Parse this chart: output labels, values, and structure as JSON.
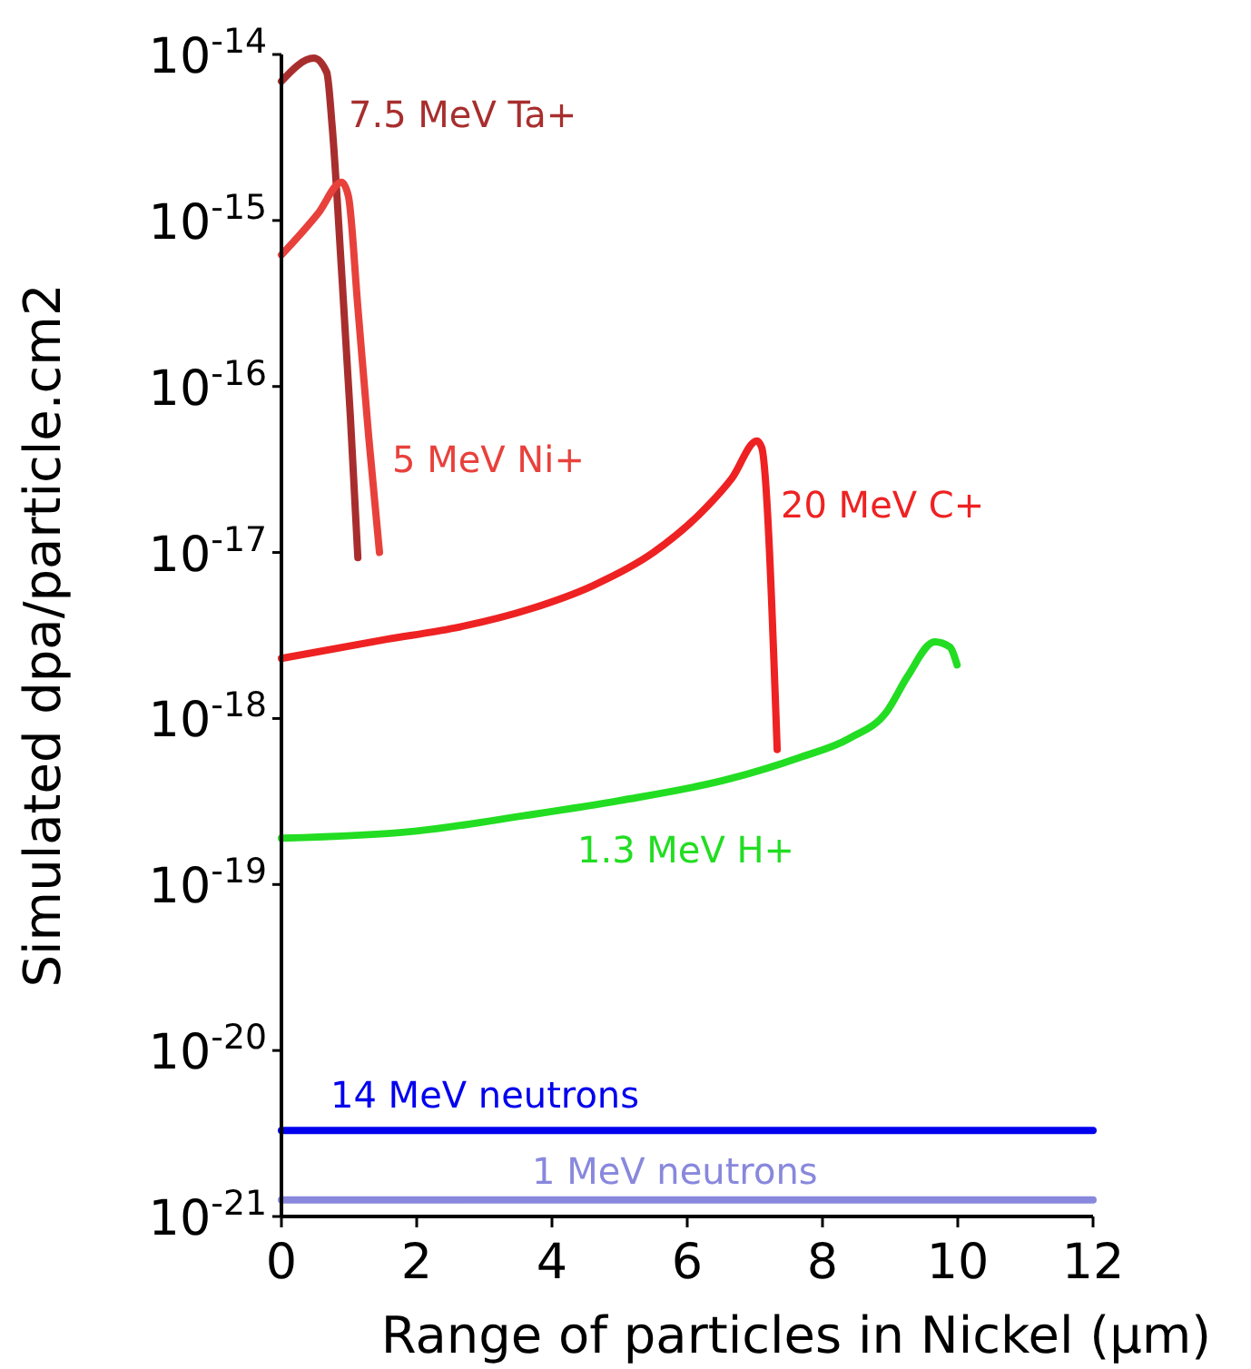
{
  "chart_data": {
    "type": "line",
    "xlabel": "Range of particles in Nickel (µm)",
    "ylabel": "Simulated dpa/particle.cm2",
    "log": "y",
    "grid": false,
    "marker": "none",
    "line_style": "solid",
    "xlim": [
      0,
      12
    ],
    "xticks": [
      0,
      2,
      4,
      6,
      8,
      10,
      12
    ],
    "ylim": [
      1e-21,
      1e-14
    ],
    "yticks": [
      {
        "value": 1e-21,
        "label": "10$^{-21}$"
      },
      {
        "value": 1e-20,
        "label": "10$^{-20}$"
      },
      {
        "value": 1e-19,
        "label": "10$^{-19}$"
      },
      {
        "value": 1e-18,
        "label": "10$^{-18}$"
      },
      {
        "value": 1e-17,
        "label": "10$^{-17}$"
      },
      {
        "value": 1e-16,
        "label": "10$^{-16}$"
      },
      {
        "value": 1e-15,
        "label": "10$^{-15}$"
      },
      {
        "value": 1e-14,
        "label": "10$^{-14}$"
      }
    ],
    "series": [
      {
        "name": "7.5 MeV Ta+",
        "color": "#a82e2e",
        "x": [
          0,
          0.48,
          0.67,
          0.75,
          0.89,
          1.02,
          1.13
        ],
        "values": [
          6.9e-15,
          9.5e-15,
          7.8e-15,
          3.7e-15,
          4.9e-16,
          6.5e-17,
          9.3e-18
        ]
      },
      {
        "name": "5 MeV Ni+",
        "color": "#e8413c",
        "x": [
          0,
          0.54,
          0.89,
          0.99,
          1.13,
          1.29,
          1.45
        ],
        "values": [
          6.2e-16,
          1.1e-15,
          1.7e-15,
          1.4e-15,
          3e-16,
          5e-17,
          1e-17
        ]
      },
      {
        "name": "20 MeV C+",
        "color": "#ee2222",
        "x": [
          0,
          1.56,
          2.55,
          3.7,
          4.6,
          5.5,
          6.3,
          6.66,
          7.03,
          7.1,
          7.33
        ],
        "values": [
          2.3e-18,
          3e-18,
          3.5e-18,
          4.6e-18,
          6.3e-18,
          1e-17,
          1.9e-17,
          2.8e-17,
          4.7e-17,
          4.3e-17,
          6.5e-19
        ]
      },
      {
        "name": "1.3 MeV H+",
        "color": "#22dd22",
        "x": [
          0,
          2.0,
          3.6,
          5.0,
          6.6,
          7.65,
          8.4,
          8.95,
          9.26,
          9.66,
          9.88,
          9.99
        ],
        "values": [
          1.9e-19,
          2.1e-19,
          2.6e-19,
          3.2e-19,
          4.3e-19,
          5.8e-19,
          7.6e-19,
          1.1e-18,
          1.8e-18,
          2.9e-18,
          2.7e-18,
          2.1e-18
        ]
      },
      {
        "name": "14 MeV neutrons",
        "color": "#0000ee",
        "x": [
          0,
          12
        ],
        "values": [
          3.3e-21,
          3.3e-21
        ]
      },
      {
        "name": "1 MeV neutrons",
        "color": "#8888dd",
        "x": [
          0,
          12
        ],
        "values": [
          1.26e-21,
          1.26e-21
        ]
      }
    ]
  }
}
